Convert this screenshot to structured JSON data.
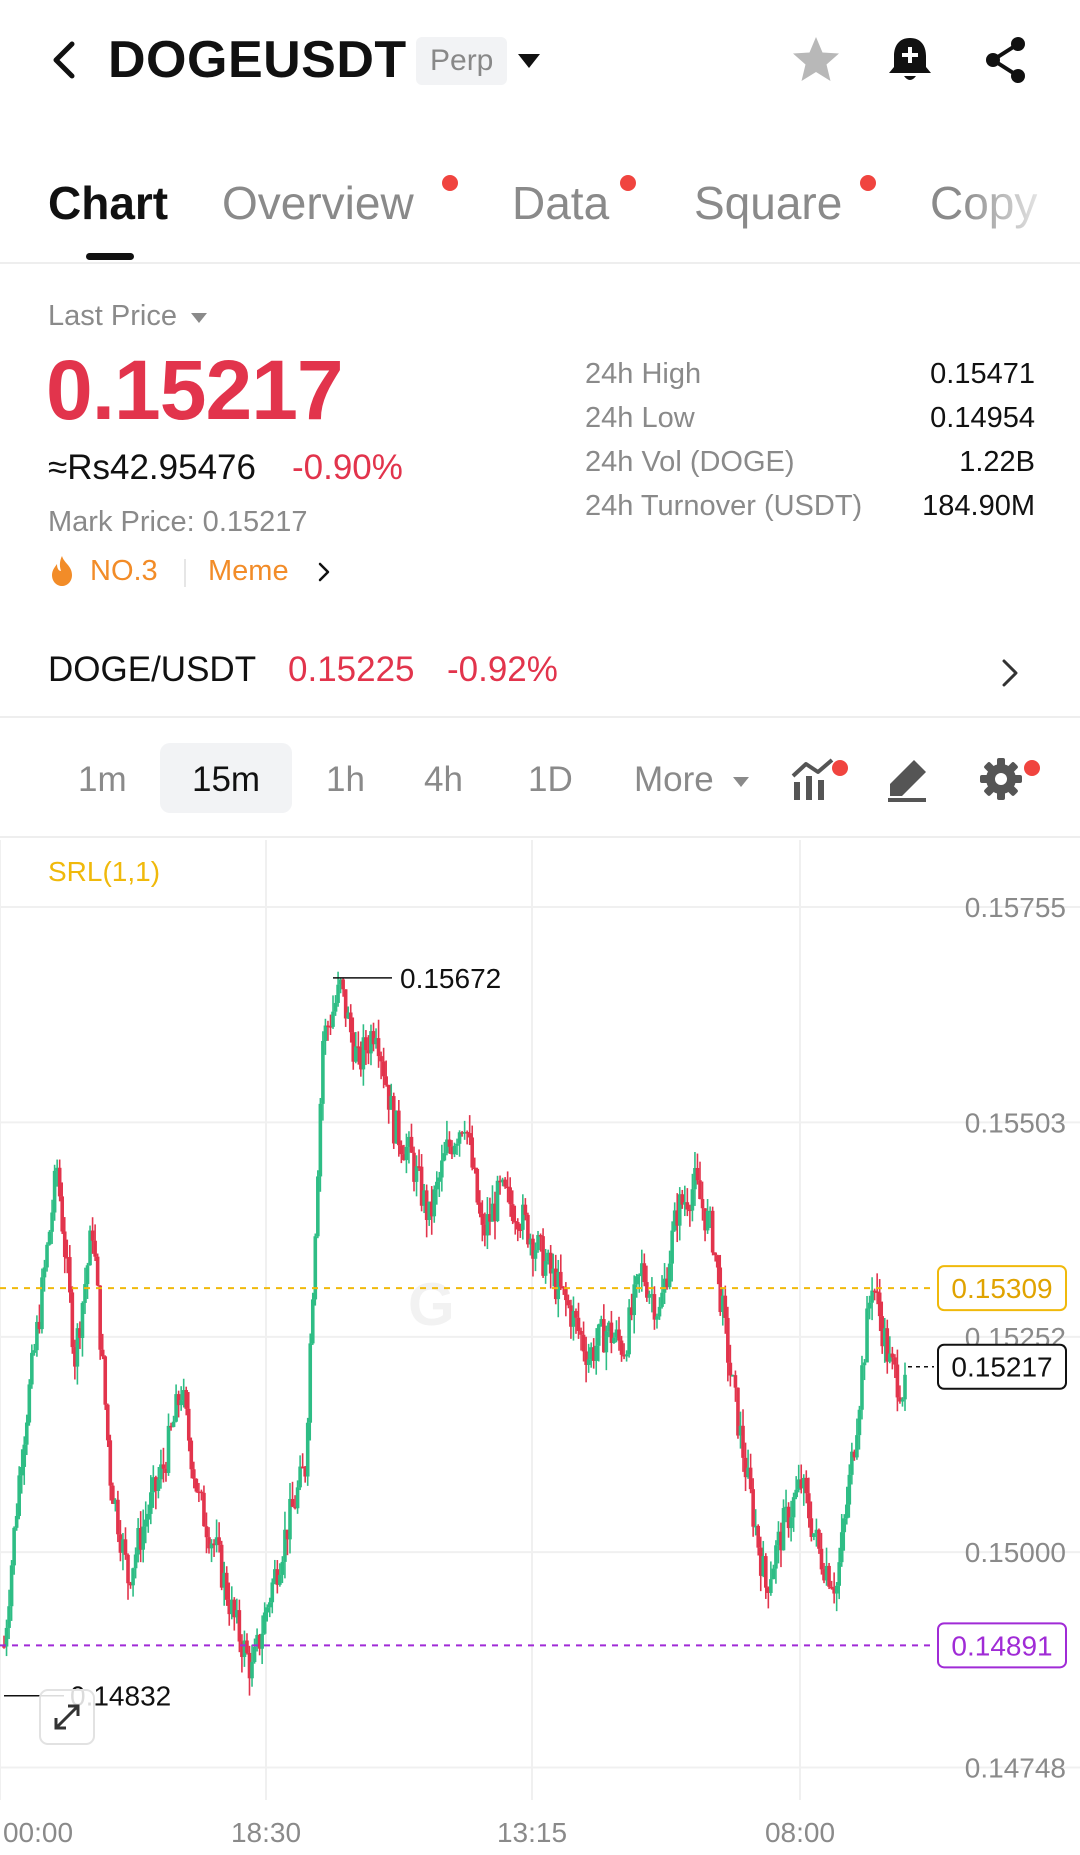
{
  "header": {
    "symbol": "DOGEUSDT",
    "contract_type": "Perp",
    "icons": [
      "back-arrow-icon",
      "caret-down-icon",
      "star-icon",
      "bell-plus-icon",
      "share-icon"
    ]
  },
  "tabs": [
    {
      "label": "Chart",
      "active": true,
      "dot": false
    },
    {
      "label": "Overview",
      "active": false,
      "dot": true
    },
    {
      "label": "Data",
      "active": false,
      "dot": true
    },
    {
      "label": "Square",
      "active": false,
      "dot": true
    },
    {
      "label": "Copy",
      "active": false,
      "dot": false
    }
  ],
  "price": {
    "last_price_label": "Last Price",
    "last_price": "0.15217",
    "fiat": "≈Rs42.95476",
    "change": "-0.90%",
    "mark_price": "Mark Price:  0.15217",
    "rank_tag": "NO.3",
    "category_tag": "Meme"
  },
  "stats": [
    {
      "label": "24h High",
      "value": "0.15471"
    },
    {
      "label": "24h Low",
      "value": "0.14954"
    },
    {
      "label": "24h Vol (DOGE)",
      "value": "1.22B"
    },
    {
      "label": "24h Turnover (USDT)",
      "value": "184.90M"
    }
  ],
  "spot": {
    "pair": "DOGE/USDT",
    "price": "0.15225",
    "change": "-0.92%"
  },
  "intervals": {
    "items": [
      "1m",
      "15m",
      "1h",
      "4h",
      "1D"
    ],
    "active": "15m",
    "more_label": "More"
  },
  "colors": {
    "up": "#2ebd85",
    "down": "#e2344c",
    "accent_orange": "#f28c28",
    "indicator_yellow": "#f0b90b",
    "purple_line": "#a02bd6"
  },
  "chart_data": {
    "type": "candlestick",
    "indicator": "SRL(1,1)",
    "y_ticks": [
      "0.15755",
      "0.15503",
      "0.15252",
      "0.15000",
      "0.14748"
    ],
    "x_ticks": [
      "00:00",
      "18:30",
      "13:15",
      "08:00"
    ],
    "ylim": [
      0.1471,
      0.1581
    ],
    "high_label": "0.15672",
    "low_label": "0.14832",
    "current_price": "0.15217",
    "yellow_line": "0.15309",
    "purple_line": "0.14891",
    "grid": true,
    "series": [
      {
        "x": 0,
        "y": 0.1489
      },
      {
        "x": 1,
        "y": 0.1512
      },
      {
        "x": 2,
        "y": 0.1528
      },
      {
        "x": 3,
        "y": 0.1545
      },
      {
        "x": 4,
        "y": 0.1523
      },
      {
        "x": 5,
        "y": 0.1538
      },
      {
        "x": 6,
        "y": 0.1509
      },
      {
        "x": 7,
        "y": 0.1497
      },
      {
        "x": 8,
        "y": 0.1504
      },
      {
        "x": 9,
        "y": 0.151
      },
      {
        "x": 10,
        "y": 0.1519
      },
      {
        "x": 11,
        "y": 0.1506
      },
      {
        "x": 12,
        "y": 0.15
      },
      {
        "x": 13,
        "y": 0.1492
      },
      {
        "x": 14,
        "y": 0.1486
      },
      {
        "x": 15,
        "y": 0.1495
      },
      {
        "x": 16,
        "y": 0.1503
      },
      {
        "x": 17,
        "y": 0.151
      },
      {
        "x": 18,
        "y": 0.156
      },
      {
        "x": 19,
        "y": 0.1566
      },
      {
        "x": 20,
        "y": 0.1557
      },
      {
        "x": 21,
        "y": 0.1562
      },
      {
        "x": 22,
        "y": 0.155
      },
      {
        "x": 23,
        "y": 0.1546
      },
      {
        "x": 24,
        "y": 0.1539
      },
      {
        "x": 25,
        "y": 0.1547
      },
      {
        "x": 26,
        "y": 0.1551
      },
      {
        "x": 27,
        "y": 0.1537
      },
      {
        "x": 28,
        "y": 0.1542
      },
      {
        "x": 29,
        "y": 0.154
      },
      {
        "x": 30,
        "y": 0.1536
      },
      {
        "x": 31,
        "y": 0.1532
      },
      {
        "x": 32,
        "y": 0.1528
      },
      {
        "x": 33,
        "y": 0.1523
      },
      {
        "x": 34,
        "y": 0.1526
      },
      {
        "x": 35,
        "y": 0.1524
      },
      {
        "x": 36,
        "y": 0.1533
      },
      {
        "x": 37,
        "y": 0.1528
      },
      {
        "x": 38,
        "y": 0.154
      },
      {
        "x": 39,
        "y": 0.1543
      },
      {
        "x": 40,
        "y": 0.1537
      },
      {
        "x": 41,
        "y": 0.1521
      },
      {
        "x": 42,
        "y": 0.1508
      },
      {
        "x": 43,
        "y": 0.1496
      },
      {
        "x": 44,
        "y": 0.1503
      },
      {
        "x": 45,
        "y": 0.1508
      },
      {
        "x": 46,
        "y": 0.15
      },
      {
        "x": 47,
        "y": 0.1496
      },
      {
        "x": 48,
        "y": 0.1513
      },
      {
        "x": 49,
        "y": 0.1532
      },
      {
        "x": 50,
        "y": 0.1522
      },
      {
        "x": 51,
        "y": 0.1518
      }
    ]
  }
}
